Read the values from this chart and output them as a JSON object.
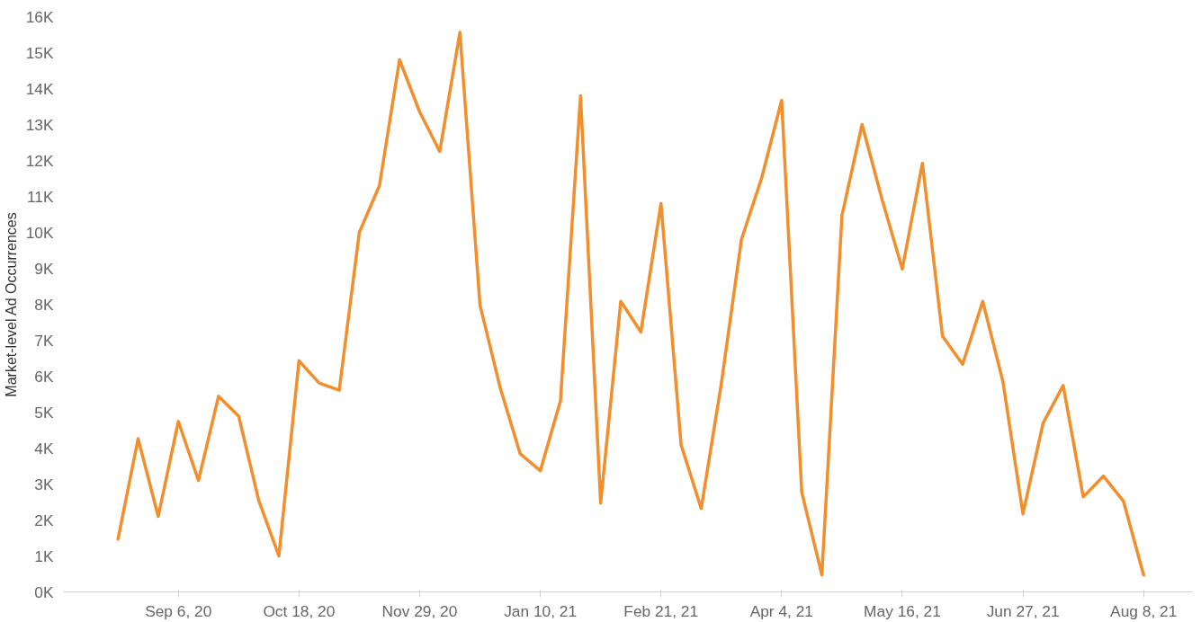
{
  "chart_data": {
    "type": "line",
    "ylabel": "Market-level Ad Occurrences",
    "x": [
      "2020-08-16",
      "2020-08-23",
      "2020-08-30",
      "2020-09-06",
      "2020-09-13",
      "2020-09-20",
      "2020-09-27",
      "2020-10-04",
      "2020-10-11",
      "2020-10-18",
      "2020-10-25",
      "2020-11-01",
      "2020-11-08",
      "2020-11-15",
      "2020-11-22",
      "2020-11-29",
      "2020-12-06",
      "2020-12-13",
      "2020-12-20",
      "2020-12-27",
      "2021-01-03",
      "2021-01-10",
      "2021-01-17",
      "2021-01-24",
      "2021-01-31",
      "2021-02-07",
      "2021-02-14",
      "2021-02-21",
      "2021-02-28",
      "2021-03-07",
      "2021-03-14",
      "2021-03-21",
      "2021-03-28",
      "2021-04-04",
      "2021-04-11",
      "2021-04-18",
      "2021-04-25",
      "2021-05-02",
      "2021-05-09",
      "2021-05-16",
      "2021-05-23",
      "2021-05-30",
      "2021-06-06",
      "2021-06-13",
      "2021-06-20",
      "2021-06-27",
      "2021-07-04",
      "2021-07-11",
      "2021-07-18",
      "2021-07-25",
      "2021-08-01",
      "2021-08-08"
    ],
    "series": [
      {
        "color": "#f28e2b",
        "values": [
          1470,
          4260,
          2100,
          4740,
          3100,
          5440,
          4890,
          2540,
          1000,
          6430,
          5810,
          5610,
          10000,
          11300,
          14800,
          13350,
          12250,
          15560,
          7980,
          5690,
          3840,
          3370,
          5310,
          13800,
          2470,
          8080,
          7230,
          10800,
          4090,
          2320,
          5790,
          9800,
          11500,
          13670,
          2770,
          470,
          10470,
          13000,
          10900,
          8980,
          11920,
          7110,
          6330,
          8080,
          5860,
          2170,
          4690,
          5740,
          2640,
          3220,
          2520,
          470
        ]
      }
    ],
    "xlim": [
      "2020-07-28",
      "2021-08-25"
    ],
    "xticks": [
      {
        "value": "2020-09-06",
        "label": "Sep 6, 20"
      },
      {
        "value": "2020-10-18",
        "label": "Oct 18, 20"
      },
      {
        "value": "2020-11-29",
        "label": "Nov 29, 20"
      },
      {
        "value": "2021-01-10",
        "label": "Jan 10, 21"
      },
      {
        "value": "2021-02-21",
        "label": "Feb 21, 21"
      },
      {
        "value": "2021-04-04",
        "label": "Apr 4, 21"
      },
      {
        "value": "2021-05-16",
        "label": "May 16, 21"
      },
      {
        "value": "2021-06-27",
        "label": "Jun 27, 21"
      },
      {
        "value": "2021-08-08",
        "label": "Aug 8, 21"
      }
    ],
    "ylim": [
      0,
      16000
    ],
    "yticks": [
      {
        "value": 0,
        "label": "0K"
      },
      {
        "value": 1000,
        "label": "1K"
      },
      {
        "value": 2000,
        "label": "2K"
      },
      {
        "value": 3000,
        "label": "3K"
      },
      {
        "value": 4000,
        "label": "4K"
      },
      {
        "value": 5000,
        "label": "5K"
      },
      {
        "value": 6000,
        "label": "6K"
      },
      {
        "value": 7000,
        "label": "7K"
      },
      {
        "value": 8000,
        "label": "8K"
      },
      {
        "value": 9000,
        "label": "9K"
      },
      {
        "value": 10000,
        "label": "10K"
      },
      {
        "value": 11000,
        "label": "11K"
      },
      {
        "value": 12000,
        "label": "12K"
      },
      {
        "value": 13000,
        "label": "13K"
      },
      {
        "value": 14000,
        "label": "14K"
      },
      {
        "value": 15000,
        "label": "15K"
      },
      {
        "value": 16000,
        "label": "16K"
      }
    ],
    "grid": false,
    "marker": "none",
    "line_style": "solid"
  }
}
